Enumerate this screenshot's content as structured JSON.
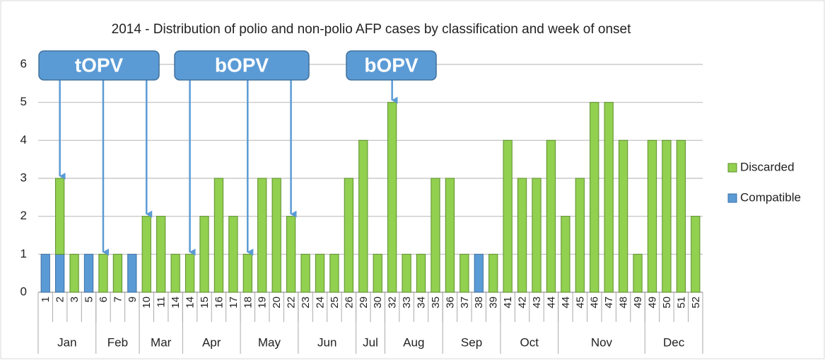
{
  "chart_data": {
    "type": "stacked_bar",
    "title": "2014 - Distribution of polio and non-polio AFP cases by classification and week of onset",
    "groups": [
      {
        "label": "Jan",
        "categories": [
          "1",
          "2",
          "3",
          "5"
        ]
      },
      {
        "label": "Feb",
        "categories": [
          "6",
          "7",
          "9"
        ]
      },
      {
        "label": "Mar",
        "categories": [
          "10",
          "11",
          "14"
        ]
      },
      {
        "label": "Apr",
        "categories": [
          "14",
          "15",
          "16",
          "17"
        ]
      },
      {
        "label": "May",
        "categories": [
          "18",
          "19",
          "20",
          "22"
        ]
      },
      {
        "label": "Jun",
        "categories": [
          "23",
          "24",
          "25",
          "26"
        ]
      },
      {
        "label": "Jul",
        "categories": [
          "29",
          "30"
        ]
      },
      {
        "label": "Aug",
        "categories": [
          "32",
          "33",
          "34",
          "35"
        ]
      },
      {
        "label": "Sep",
        "categories": [
          "36",
          "37",
          "38",
          "39"
        ]
      },
      {
        "label": "Oct",
        "categories": [
          "41",
          "42",
          "43",
          "44"
        ]
      },
      {
        "label": "Nov",
        "categories": [
          "44",
          "45",
          "46",
          "47",
          "48",
          "49"
        ]
      },
      {
        "label": "Dec",
        "categories": [
          "49",
          "50",
          "51",
          "52"
        ]
      }
    ],
    "series": [
      {
        "name": "Compatible",
        "color": "#5b9bd5",
        "values": [
          1,
          1,
          0,
          1,
          0,
          0,
          1,
          0,
          0,
          0,
          0,
          0,
          0,
          0,
          0,
          0,
          0,
          0,
          0,
          0,
          0,
          0,
          0,
          0,
          0,
          0,
          0,
          0,
          0,
          0,
          1,
          0,
          0,
          0,
          0,
          0,
          0,
          0,
          0,
          0,
          0,
          0,
          0,
          0,
          0,
          0
        ]
      },
      {
        "name": "Discarded",
        "color": "#92d050",
        "values": [
          0,
          2,
          1,
          0,
          1,
          1,
          0,
          2,
          2,
          1,
          1,
          2,
          3,
          2,
          1,
          3,
          3,
          2,
          1,
          1,
          1,
          3,
          4,
          1,
          5,
          1,
          1,
          3,
          3,
          1,
          0,
          1,
          4,
          3,
          3,
          4,
          2,
          3,
          5,
          5,
          4,
          1,
          4,
          4,
          4,
          2
        ]
      }
    ],
    "annotations": [
      "tOPV",
      "bOPV",
      "bOPV"
    ],
    "ylim": [
      0,
      6
    ],
    "yticks": [
      0,
      1,
      2,
      3,
      4,
      5,
      6
    ],
    "grid": true
  }
}
